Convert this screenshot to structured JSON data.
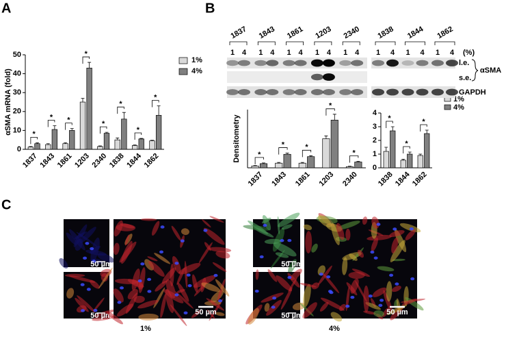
{
  "panels": {
    "a": "A",
    "b": "B",
    "c": "C"
  },
  "chart_data": [
    {
      "type": "bar",
      "ylabel": "αSMA mRNA (fold)",
      "categories": [
        "1837",
        "1843",
        "1861",
        "1203",
        "2340",
        "1838",
        "1844",
        "1862"
      ],
      "series": [
        {
          "name": "1%",
          "color": "#d9d9d9",
          "values": [
            1.2,
            2.5,
            3,
            25,
            1.5,
            5,
            2,
            4.5
          ],
          "errors": [
            0.3,
            0.5,
            0.5,
            2,
            0.3,
            1,
            0.3,
            0.3
          ]
        },
        {
          "name": "4%",
          "color": "#808080",
          "values": [
            3,
            10.5,
            10,
            43,
            8.5,
            16,
            5.5,
            18
          ],
          "errors": [
            0.5,
            2,
            1,
            3,
            0.5,
            3.5,
            0.3,
            5
          ]
        }
      ],
      "annotations": [
        "*",
        "*",
        "*",
        "*",
        "*",
        "*",
        "*",
        "*"
      ],
      "ylim": [
        0,
        50
      ],
      "yticks": [
        0,
        10,
        20,
        30,
        40,
        50
      ],
      "legend": "right"
    },
    {
      "type": "bar",
      "ylabel": "Densitometry",
      "categories": [
        "1837",
        "1843",
        "1861",
        "1203",
        "2340"
      ],
      "series": [
        {
          "color": "#d9d9d9",
          "values": [
            0.8,
            2,
            2,
            12.5,
            0.5
          ],
          "errors": [
            0.2,
            0.3,
            0.3,
            1.2,
            0.2
          ]
        },
        {
          "color": "#808080",
          "values": [
            1.8,
            5.8,
            4.8,
            20.5,
            2.5
          ],
          "errors": [
            0.3,
            0.5,
            0.4,
            2.5,
            0.3
          ]
        }
      ],
      "annotations": [
        "*",
        "*",
        "*",
        "*",
        "*"
      ],
      "ylim": [
        0,
        25
      ]
    },
    {
      "type": "bar",
      "categories": [
        "1838",
        "1844",
        "1862"
      ],
      "series": [
        {
          "name": "1%",
          "color": "#d9d9d9",
          "values": [
            1.2,
            0.55,
            0.9
          ],
          "errors": [
            0.3,
            0.08,
            0.1
          ]
        },
        {
          "name": "4%",
          "color": "#808080",
          "values": [
            2.7,
            1.0,
            2.5
          ],
          "errors": [
            0.3,
            0.15,
            0.25
          ]
        }
      ],
      "annotations": [
        "*",
        "*",
        "*"
      ],
      "ylim": [
        0,
        4
      ],
      "yticks": [
        0,
        1,
        2,
        3,
        4
      ],
      "legend": "right"
    }
  ],
  "blot": {
    "groups_left": [
      "1837",
      "1843",
      "1861",
      "1203",
      "2340"
    ],
    "groups_right": [
      "1838",
      "1844",
      "1862"
    ],
    "lanes": [
      "1",
      "4"
    ],
    "unit": "(%)",
    "rows": [
      "l.e.",
      "s.e.",
      "GAPDH"
    ],
    "protein": "αSMA"
  },
  "micrographs": {
    "scale_bar": "50 µm",
    "conditions": [
      "1%",
      "4%"
    ]
  }
}
